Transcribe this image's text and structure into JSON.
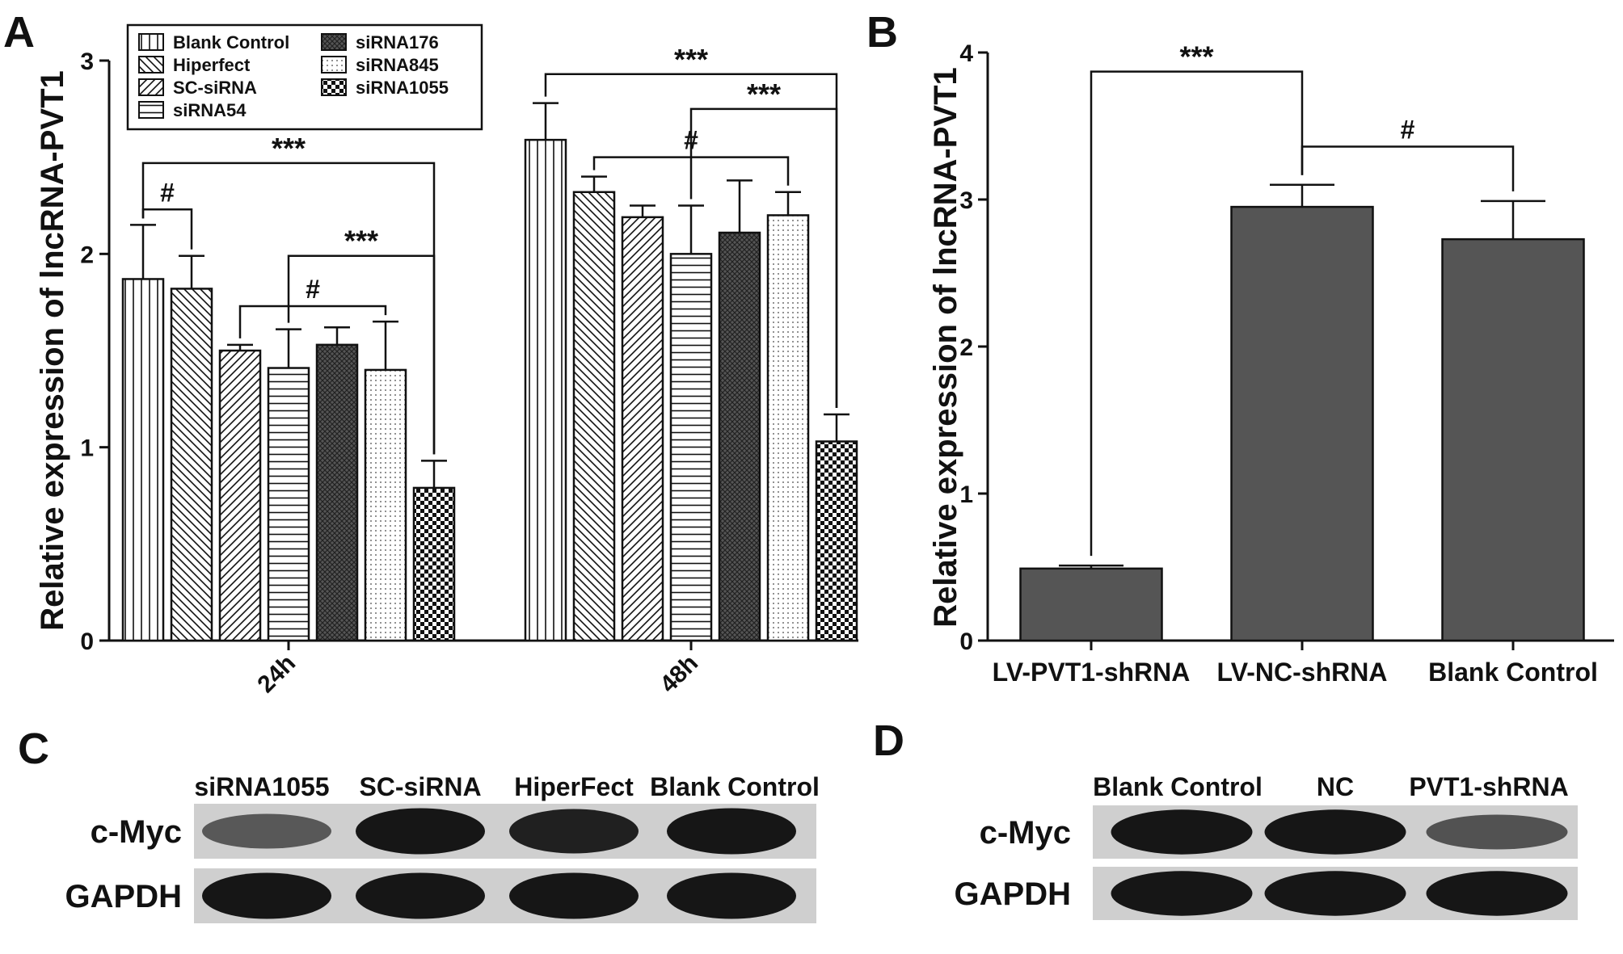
{
  "panel_labels": {
    "a": "A",
    "b": "B",
    "c": "C",
    "d": "D"
  },
  "chart_data": [
    {
      "panel": "A",
      "type": "bar",
      "ylabel": "Relative expression of lncRNA-PVT1",
      "ylim": [
        0,
        3
      ],
      "yticks": [
        "0",
        "1",
        "2",
        "3"
      ],
      "categories": [
        "24h",
        "48h"
      ],
      "series": [
        {
          "name": "Blank Control",
          "pattern": "vlines",
          "values": [
            1.87,
            2.59
          ],
          "errors": [
            0.28,
            0.19
          ]
        },
        {
          "name": "Hiperfect",
          "pattern": "backdiag",
          "values": [
            1.82,
            2.32
          ],
          "errors": [
            0.17,
            0.08
          ]
        },
        {
          "name": "SC-siRNA",
          "pattern": "diag",
          "values": [
            1.5,
            2.19
          ],
          "errors": [
            0.03,
            0.06
          ]
        },
        {
          "name": "siRNA54",
          "pattern": "hlines",
          "values": [
            1.41,
            2.0
          ],
          "errors": [
            0.2,
            0.25
          ]
        },
        {
          "name": "siRNA176",
          "pattern": "crosshatch",
          "values": [
            1.53,
            2.11
          ],
          "errors": [
            0.09,
            0.27
          ]
        },
        {
          "name": "siRNA845",
          "pattern": "dots",
          "values": [
            1.4,
            2.2
          ],
          "errors": [
            0.25,
            0.12
          ]
        },
        {
          "name": "siRNA1055",
          "pattern": "checker",
          "values": [
            0.79,
            1.03
          ],
          "errors": [
            0.14,
            0.14
          ]
        }
      ],
      "significance": [
        {
          "group": 0,
          "from": 0,
          "to": 1,
          "label": "#",
          "level": 2.23
        },
        {
          "group": 0,
          "from": 2,
          "to": 5,
          "label": "#",
          "level": 1.73
        },
        {
          "group": 0,
          "from": 3,
          "to": 6,
          "label": "***",
          "level": 1.99
        },
        {
          "group": 0,
          "from": 0,
          "to": 6,
          "label": "***",
          "level": 2.47
        },
        {
          "group": 1,
          "from": 1,
          "to": 5,
          "label": "#",
          "level": 2.5
        },
        {
          "group": 1,
          "from": 3,
          "to": 6,
          "label": "***",
          "level": 2.75
        },
        {
          "group": 1,
          "from": 0,
          "to": 6,
          "label": "***",
          "level": 2.93
        }
      ]
    },
    {
      "panel": "B",
      "type": "bar",
      "ylabel": "Relative expression of lncRNA-PVT1",
      "ylim": [
        0,
        4
      ],
      "yticks": [
        "0",
        "1",
        "2",
        "3",
        "4"
      ],
      "categories": [
        "LV-PVT1-shRNA",
        "LV-NC-shRNA",
        "Blank Control"
      ],
      "values": [
        0.49,
        2.95,
        2.73
      ],
      "errors": [
        0.02,
        0.15,
        0.26
      ],
      "color": "#555555",
      "significance": [
        {
          "from": 0,
          "to": 1,
          "label": "***",
          "level": 3.87
        },
        {
          "from": 1,
          "to": 2,
          "label": "#",
          "level": 3.36
        }
      ]
    }
  ],
  "blots": {
    "c": {
      "lanes": [
        "siRNA1055",
        "SC-siRNA",
        "HiperFect",
        "Blank Control"
      ],
      "rows": [
        {
          "label": "c-Myc",
          "intensity": [
            0.45,
            1.0,
            0.92,
            1.0
          ]
        },
        {
          "label": "GAPDH",
          "intensity": [
            1.0,
            1.0,
            1.0,
            1.0
          ]
        }
      ]
    },
    "d": {
      "lanes": [
        "Blank Control",
        "NC",
        "PVT1-shRNA"
      ],
      "rows": [
        {
          "label": "c-Myc",
          "intensity": [
            1.0,
            1.0,
            0.5
          ]
        },
        {
          "label": "GAPDH",
          "intensity": [
            1.0,
            1.0,
            1.0
          ]
        }
      ]
    }
  }
}
